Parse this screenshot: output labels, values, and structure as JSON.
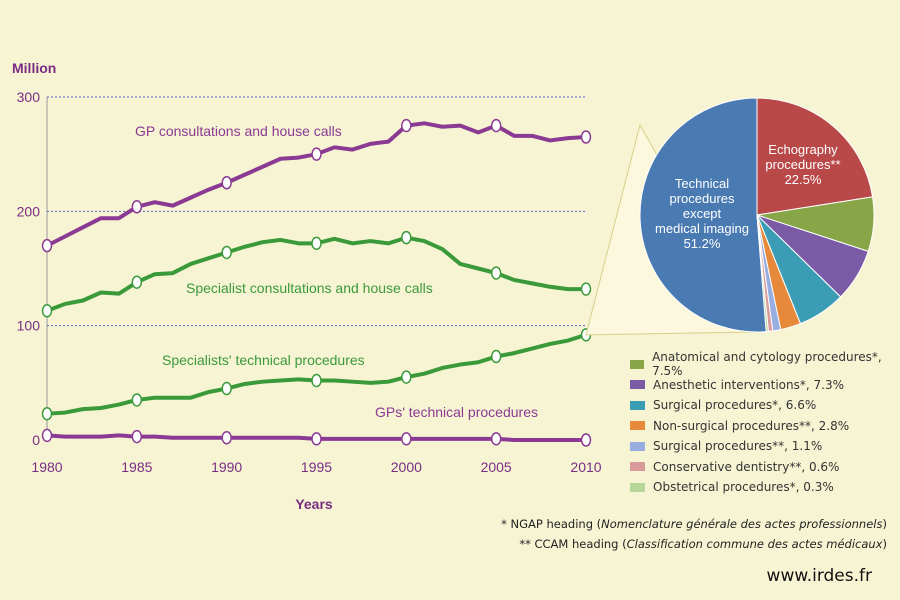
{
  "chart_data": [
    {
      "type": "line",
      "ylabel": "Million",
      "xlabel": "Years",
      "xlim": [
        1980,
        2010
      ],
      "ylim": [
        0,
        300
      ],
      "yticks": [
        0,
        100,
        200,
        300
      ],
      "xticks": [
        1980,
        1985,
        1990,
        1995,
        2000,
        2005,
        2010
      ],
      "grid": "dotted lines at 100, 200, 300",
      "series": [
        {
          "name": "GP consultations and house calls",
          "color": "#8b3a93",
          "x": [
            1980,
            1981,
            1982,
            1983,
            1984,
            1985,
            1986,
            1987,
            1988,
            1989,
            1990,
            1991,
            1992,
            1993,
            1994,
            1995,
            1996,
            1997,
            1998,
            1999,
            2000,
            2001,
            2002,
            2003,
            2004,
            2005,
            2006,
            2007,
            2008,
            2009,
            2010
          ],
          "values": [
            170,
            178,
            186,
            194,
            194,
            204,
            208,
            205,
            212,
            219,
            225,
            232,
            239,
            246,
            247,
            250,
            256,
            254,
            259,
            261,
            275,
            277,
            274,
            275,
            269,
            275,
            266,
            266,
            262,
            264,
            265
          ],
          "markers": [
            1980,
            1985,
            1990,
            1995,
            2000,
            2005,
            2010
          ]
        },
        {
          "name": "Specialist consultations and house calls",
          "color": "#3a9a3a",
          "x": [
            1980,
            1981,
            1982,
            1983,
            1984,
            1985,
            1986,
            1987,
            1988,
            1989,
            1990,
            1991,
            1992,
            1993,
            1994,
            1995,
            1996,
            1997,
            1998,
            1999,
            2000,
            2001,
            2002,
            2003,
            2004,
            2005,
            2006,
            2007,
            2008,
            2009,
            2010
          ],
          "values": [
            113,
            119,
            122,
            129,
            128,
            138,
            145,
            146,
            154,
            159,
            164,
            169,
            173,
            175,
            172,
            172,
            176,
            172,
            174,
            172,
            177,
            174,
            167,
            154,
            150,
            146,
            140,
            137,
            134,
            132,
            132
          ],
          "markers": [
            1980,
            1985,
            1990,
            1995,
            2000,
            2005,
            2010
          ]
        },
        {
          "name": "Specialists' technical procedures",
          "color": "#3a9a3a",
          "x": [
            1980,
            1981,
            1982,
            1983,
            1984,
            1985,
            1986,
            1987,
            1988,
            1989,
            1990,
            1991,
            1992,
            1993,
            1994,
            1995,
            1996,
            1997,
            1998,
            1999,
            2000,
            2001,
            2002,
            2003,
            2004,
            2005,
            2006,
            2007,
            2008,
            2009,
            2010
          ],
          "values": [
            23,
            24,
            27,
            28,
            31,
            35,
            37,
            37,
            37,
            42,
            45,
            49,
            51,
            52,
            53,
            52,
            52,
            51,
            50,
            51,
            55,
            58,
            63,
            66,
            68,
            73,
            76,
            80,
            84,
            87,
            92
          ],
          "markers": [
            1980,
            1985,
            1990,
            1995,
            2000,
            2005,
            2010
          ]
        },
        {
          "name": "GPs' technical procedures",
          "color": "#8b3a93",
          "x": [
            1980,
            1981,
            1982,
            1983,
            1984,
            1985,
            1986,
            1987,
            1988,
            1989,
            1990,
            1991,
            1992,
            1993,
            1994,
            1995,
            1996,
            1997,
            1998,
            1999,
            2000,
            2001,
            2002,
            2003,
            2004,
            2005,
            2006,
            2007,
            2008,
            2009,
            2010
          ],
          "values": [
            4,
            3,
            3,
            3,
            4,
            3,
            3,
            2,
            2,
            2,
            2,
            2,
            2,
            2,
            2,
            1,
            1,
            1,
            1,
            1,
            1,
            1,
            1,
            1,
            1,
            1,
            0,
            0,
            0,
            0,
            0
          ],
          "markers": [
            1980,
            1985,
            1990,
            1995,
            2000,
            2005,
            2010
          ]
        }
      ]
    },
    {
      "type": "pie",
      "slices": [
        {
          "label": "Technical procedures except medical imaging",
          "display": [
            "Technical",
            "procedures",
            "except",
            "medical imaging",
            "51.2%"
          ],
          "value": 51.2,
          "color": "#4a7ab2"
        },
        {
          "label": "Echography procedures**",
          "display": [
            "Echography",
            "procedures**",
            "22.5%"
          ],
          "value": 22.5,
          "color": "#b94848"
        },
        {
          "label": "Anatomical and cytology procedures*",
          "value": 7.5,
          "color": "#88a548"
        },
        {
          "label": "Anesthetic interventions*",
          "value": 7.3,
          "color": "#7b5aa6"
        },
        {
          "label": "Surgical procedures*",
          "value": 6.6,
          "color": "#3b9cb5"
        },
        {
          "label": "Non-surgical procedures**",
          "value": 2.8,
          "color": "#e6893b"
        },
        {
          "label": "Surgical procedures**",
          "value": 1.1,
          "color": "#98aee0"
        },
        {
          "label": "Conservative dentistry**",
          "value": 0.6,
          "color": "#d99a9a"
        },
        {
          "label": "Obstetrical procedures*",
          "value": 0.3,
          "color": "#b6d69a"
        }
      ]
    }
  ],
  "legend": [
    {
      "label": "Anatomical and cytology procedures*, 7.5%",
      "color": "#88a548"
    },
    {
      "label": "Anesthetic interventions*, 7.3%",
      "color": "#7b5aa6"
    },
    {
      "label": "Surgical procedures*, 6.6%",
      "color": "#3b9cb5"
    },
    {
      "label": "Non-surgical procedures**, 2.8%",
      "color": "#e6893b"
    },
    {
      "label": "Surgical procedures**, 1.1%",
      "color": "#98aee0"
    },
    {
      "label": "Conservative dentistry**, 0.6%",
      "color": "#d99a9a"
    },
    {
      "label": "Obstetrical procedures*, 0.3%",
      "color": "#b6d69a"
    }
  ],
  "notes": {
    "ngap_prefix": "* NGAP heading (",
    "ngap_italic": "Nomenclature générale des actes professionnels",
    "ngap_suffix": ")",
    "ccam_prefix": "** CCAM heading (",
    "ccam_italic": "Classification commune des actes médicaux",
    "ccam_suffix": ")"
  },
  "website": "www.irdes.fr"
}
